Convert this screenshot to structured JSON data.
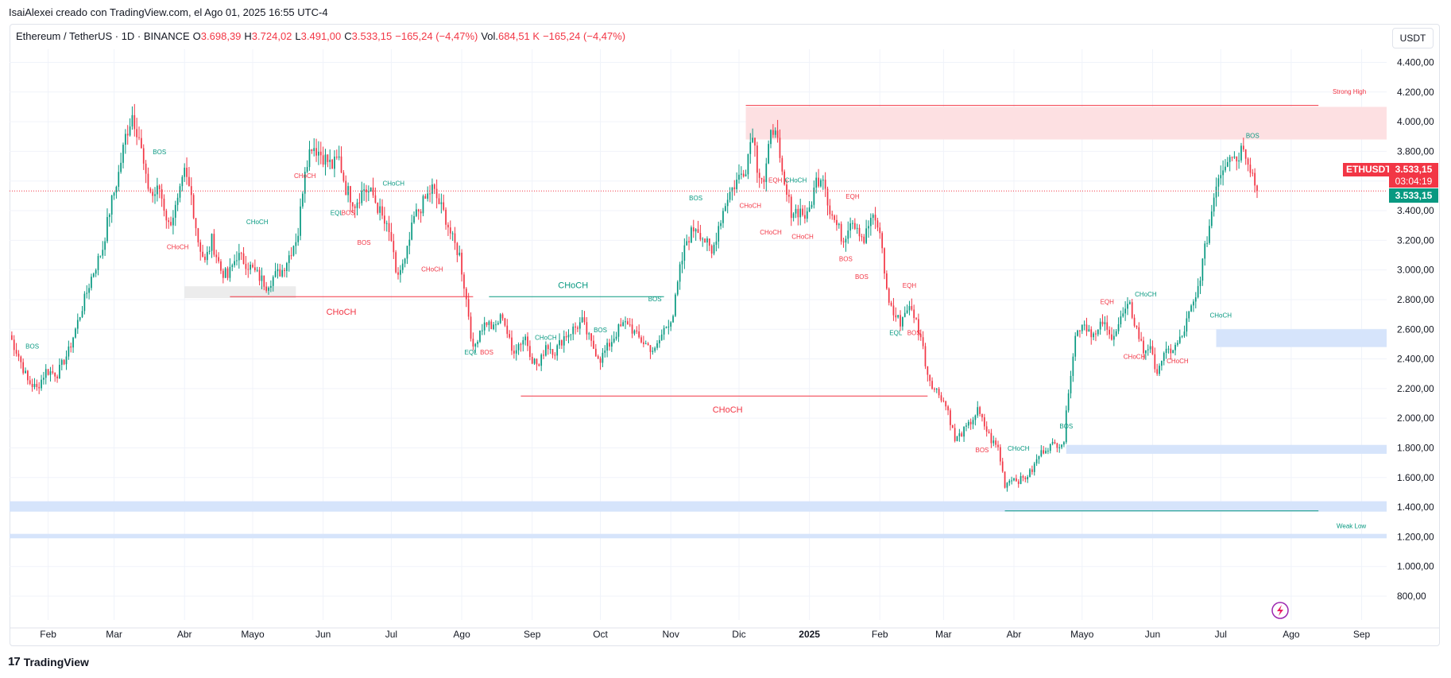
{
  "header": {
    "author_line": "IsaiAlexei creado con TradingView.com, el Ago 01, 2025 16:55 UTC-4"
  },
  "legend": {
    "symbol": "Ethereum / TetherUS · 1D · BINANCE",
    "o_label": "O",
    "o_value": "3.698,39",
    "h_label": "H",
    "h_value": "3.724,02",
    "l_label": "L",
    "l_value": "3.491,00",
    "c_label": "C",
    "c_value": "3.533,15",
    "change": "−165,24 (−4,47%)",
    "vol_label": "Vol.",
    "vol_value": "684,51 K",
    "vol_change": "−165,24 (−4,47%)"
  },
  "currency": "USDT",
  "price_tags": {
    "symbol": "ETHUSDT",
    "last": "3.533,15",
    "countdown": "03:04:19",
    "last_green": "3.533,15"
  },
  "footer": {
    "brand": "TradingView"
  },
  "colors": {
    "up": "#089981",
    "down": "#f23645",
    "supply_zone": "#fde0e2",
    "demand_zone": "#d6e4fb",
    "grey_zone": "#ececec",
    "grid": "#f0f3fa"
  },
  "chart_data": {
    "type": "candlestick",
    "ylim": [
      700,
      4500
    ],
    "y_ticks": [
      800,
      1000,
      1200,
      1400,
      1600,
      1800,
      2000,
      2200,
      2400,
      2600,
      2800,
      3000,
      3200,
      3400,
      3600,
      3800,
      4000,
      4200,
      4400
    ],
    "y_tick_labels": [
      "800,00",
      "1.000,00",
      "1.200,00",
      "1.400,00",
      "1.600,00",
      "1.800,00",
      "2.000,00",
      "2.200,00",
      "2.400,00",
      "2.600,00",
      "2.800,00",
      "3.000,00",
      "3.200,00",
      "3.400,00",
      "3.600,00",
      "3.800,00",
      "4.000,00",
      "4.200,00",
      "4.400,00"
    ],
    "x_ticks": [
      {
        "label": "Feb",
        "day": 31
      },
      {
        "label": "Mar",
        "day": 60
      },
      {
        "label": "Abr",
        "day": 91
      },
      {
        "label": "Mayo",
        "day": 121
      },
      {
        "label": "Jun",
        "day": 152
      },
      {
        "label": "Jul",
        "day": 182
      },
      {
        "label": "Ago",
        "day": 213
      },
      {
        "label": "Sep",
        "day": 244
      },
      {
        "label": "Oct",
        "day": 274
      },
      {
        "label": "Nov",
        "day": 305
      },
      {
        "label": "Dic",
        "day": 335
      },
      {
        "label": "2025",
        "day": 366,
        "bold": true
      },
      {
        "label": "Feb",
        "day": 397
      },
      {
        "label": "Mar",
        "day": 425
      },
      {
        "label": "Abr",
        "day": 456
      },
      {
        "label": "Mayo",
        "day": 486
      },
      {
        "label": "Jun",
        "day": 517
      },
      {
        "label": "Jul",
        "day": 547
      },
      {
        "label": "Ago",
        "day": 578
      },
      {
        "label": "Sep",
        "day": 609
      }
    ],
    "xlim_days": [
      14,
      620
    ],
    "last_price": 3533.15,
    "path": [
      [
        14,
        2560
      ],
      [
        18,
        2420
      ],
      [
        22,
        2250
      ],
      [
        26,
        2200
      ],
      [
        30,
        2320
      ],
      [
        35,
        2300
      ],
      [
        40,
        2450
      ],
      [
        45,
        2700
      ],
      [
        50,
        2950
      ],
      [
        55,
        3150
      ],
      [
        58,
        3400
      ],
      [
        62,
        3650
      ],
      [
        65,
        3900
      ],
      [
        68,
        4050
      ],
      [
        71,
        3900
      ],
      [
        74,
        3600
      ],
      [
        77,
        3500
      ],
      [
        80,
        3550
      ],
      [
        84,
        3300
      ],
      [
        88,
        3450
      ],
      [
        91,
        3650
      ],
      [
        94,
        3500
      ],
      [
        97,
        3200
      ],
      [
        100,
        3050
      ],
      [
        103,
        3200
      ],
      [
        107,
        3000
      ],
      [
        110,
        2950
      ],
      [
        114,
        3100
      ],
      [
        118,
        3050
      ],
      [
        121,
        3000
      ],
      [
        124,
        2950
      ],
      [
        127,
        2900
      ],
      [
        130,
        2950
      ],
      [
        134,
        3000
      ],
      [
        137,
        3100
      ],
      [
        141,
        3250
      ],
      [
        144,
        3700
      ],
      [
        147,
        3850
      ],
      [
        150,
        3800
      ],
      [
        153,
        3750
      ],
      [
        156,
        3700
      ],
      [
        159,
        3750
      ],
      [
        162,
        3550
      ],
      [
        166,
        3450
      ],
      [
        170,
        3550
      ],
      [
        174,
        3500
      ],
      [
        178,
        3350
      ],
      [
        182,
        3200
      ],
      [
        184,
        2950
      ],
      [
        188,
        3050
      ],
      [
        192,
        3350
      ],
      [
        196,
        3450
      ],
      [
        200,
        3550
      ],
      [
        203,
        3450
      ],
      [
        206,
        3350
      ],
      [
        209,
        3200
      ],
      [
        212,
        3100
      ],
      [
        214,
        2900
      ],
      [
        216,
        2700
      ],
      [
        218,
        2450
      ],
      [
        221,
        2600
      ],
      [
        224,
        2650
      ],
      [
        227,
        2600
      ],
      [
        231,
        2700
      ],
      [
        235,
        2450
      ],
      [
        238,
        2500
      ],
      [
        241,
        2550
      ],
      [
        244,
        2400
      ],
      [
        247,
        2350
      ],
      [
        250,
        2500
      ],
      [
        254,
        2450
      ],
      [
        258,
        2550
      ],
      [
        262,
        2600
      ],
      [
        266,
        2650
      ],
      [
        270,
        2500
      ],
      [
        274,
        2400
      ],
      [
        278,
        2500
      ],
      [
        282,
        2600
      ],
      [
        286,
        2650
      ],
      [
        290,
        2550
      ],
      [
        294,
        2500
      ],
      [
        298,
        2450
      ],
      [
        302,
        2600
      ],
      [
        306,
        2700
      ],
      [
        309,
        3000
      ],
      [
        312,
        3200
      ],
      [
        316,
        3300
      ],
      [
        320,
        3200
      ],
      [
        323,
        3100
      ],
      [
        326,
        3300
      ],
      [
        330,
        3500
      ],
      [
        334,
        3600
      ],
      [
        338,
        3700
      ],
      [
        341,
        3950
      ],
      [
        343,
        3700
      ],
      [
        346,
        3600
      ],
      [
        349,
        3900
      ],
      [
        351,
        4000
      ],
      [
        353,
        3700
      ],
      [
        355,
        3550
      ],
      [
        358,
        3400
      ],
      [
        362,
        3400
      ],
      [
        365,
        3350
      ],
      [
        369,
        3600
      ],
      [
        372,
        3650
      ],
      [
        375,
        3400
      ],
      [
        378,
        3300
      ],
      [
        381,
        3200
      ],
      [
        384,
        3350
      ],
      [
        387,
        3300
      ],
      [
        390,
        3200
      ],
      [
        393,
        3350
      ],
      [
        396,
        3300
      ],
      [
        398,
        3150
      ],
      [
        400,
        2850
      ],
      [
        403,
        2700
      ],
      [
        406,
        2650
      ],
      [
        409,
        2750
      ],
      [
        412,
        2700
      ],
      [
        415,
        2550
      ],
      [
        418,
        2300
      ],
      [
        421,
        2200
      ],
      [
        424,
        2150
      ],
      [
        427,
        2050
      ],
      [
        430,
        1850
      ],
      [
        433,
        1900
      ],
      [
        436,
        1950
      ],
      [
        440,
        2050
      ],
      [
        443,
        1950
      ],
      [
        446,
        1850
      ],
      [
        449,
        1800
      ],
      [
        452,
        1550
      ],
      [
        455,
        1600
      ],
      [
        458,
        1580
      ],
      [
        461,
        1600
      ],
      [
        464,
        1650
      ],
      [
        467,
        1750
      ],
      [
        470,
        1800
      ],
      [
        473,
        1820
      ],
      [
        476,
        1830
      ],
      [
        478,
        1850
      ],
      [
        480,
        2200
      ],
      [
        483,
        2550
      ],
      [
        486,
        2650
      ],
      [
        489,
        2600
      ],
      [
        492,
        2550
      ],
      [
        495,
        2650
      ],
      [
        498,
        2550
      ],
      [
        501,
        2600
      ],
      [
        504,
        2700
      ],
      [
        507,
        2750
      ],
      [
        510,
        2600
      ],
      [
        513,
        2450
      ],
      [
        516,
        2500
      ],
      [
        518,
        2300
      ],
      [
        521,
        2400
      ],
      [
        524,
        2450
      ],
      [
        527,
        2480
      ],
      [
        530,
        2550
      ],
      [
        533,
        2700
      ],
      [
        536,
        2800
      ],
      [
        539,
        3050
      ],
      [
        542,
        3300
      ],
      [
        545,
        3600
      ],
      [
        548,
        3700
      ],
      [
        551,
        3800
      ],
      [
        554,
        3750
      ],
      [
        557,
        3850
      ],
      [
        560,
        3700
      ],
      [
        563,
        3533
      ]
    ],
    "zones": [
      {
        "kind": "supply",
        "y0": 3880,
        "y1": 4100,
        "d0": 338,
        "d1": 620,
        "label": "Strong High",
        "label_day": 590,
        "label_y": 4210
      },
      {
        "kind": "demand",
        "y0": 2480,
        "y1": 2600,
        "d0": 545,
        "d1": 620
      },
      {
        "kind": "demand",
        "y0": 1760,
        "y1": 1820,
        "d0": 479,
        "d1": 620
      },
      {
        "kind": "demand",
        "y0": 1370,
        "y1": 1440,
        "d0": 14,
        "d1": 620
      },
      {
        "kind": "demand",
        "y0": 1190,
        "y1": 1220,
        "d0": 14,
        "d1": 620
      },
      {
        "kind": "grey",
        "y0": 2810,
        "y1": 2890,
        "d0": 91,
        "d1": 140
      }
    ],
    "lines": [
      {
        "d0": 338,
        "d1": 590,
        "y": 4110,
        "color": "down"
      },
      {
        "d0": 452,
        "d1": 590,
        "y": 1375,
        "color": "up",
        "label": "Weak Low",
        "label_day": 590,
        "label_y": 1280
      },
      {
        "d0": 111,
        "d1": 218,
        "y": 2820,
        "color": "down",
        "label": "CHoCH",
        "label_day": 160,
        "label_y": 2720
      },
      {
        "d0": 225,
        "d1": 302,
        "y": 2820,
        "color": "up",
        "label": "CHoCH",
        "label_day": 262,
        "label_y": 2900
      },
      {
        "d0": 239,
        "d1": 418,
        "y": 2150,
        "color": "down",
        "label": "CHoCH",
        "label_day": 330,
        "label_y": 2060
      }
    ],
    "tags": [
      {
        "t": "BOS",
        "d": 24,
        "y": 2470,
        "c": "up"
      },
      {
        "t": "BOS",
        "d": 80,
        "y": 3780,
        "c": "up"
      },
      {
        "t": "CHoCH",
        "d": 88,
        "y": 3140,
        "c": "down"
      },
      {
        "t": "CHoCH",
        "d": 123,
        "y": 3310,
        "c": "up"
      },
      {
        "t": "CHoCH",
        "d": 144,
        "y": 3620,
        "c": "down"
      },
      {
        "t": "EQL",
        "d": 158,
        "y": 3370,
        "c": "up"
      },
      {
        "t": "BOS",
        "d": 163,
        "y": 3370,
        "c": "down"
      },
      {
        "t": "BOS",
        "d": 170,
        "y": 3170,
        "c": "down"
      },
      {
        "t": "CHoCH",
        "d": 183,
        "y": 3570,
        "c": "up"
      },
      {
        "t": "CHoCH",
        "d": 200,
        "y": 2990,
        "c": "down"
      },
      {
        "t": "EQL",
        "d": 217,
        "y": 2430,
        "c": "up"
      },
      {
        "t": "BOS",
        "d": 224,
        "y": 2430,
        "c": "down"
      },
      {
        "t": "CHoCH",
        "d": 250,
        "y": 2530,
        "c": "up"
      },
      {
        "t": "BOS",
        "d": 274,
        "y": 2580,
        "c": "up"
      },
      {
        "t": "BOS",
        "d": 298,
        "y": 2790,
        "c": "up"
      },
      {
        "t": "BOS",
        "d": 316,
        "y": 3470,
        "c": "up"
      },
      {
        "t": "EQH",
        "d": 351,
        "y": 3590,
        "c": "down"
      },
      {
        "t": "CHoCH",
        "d": 360,
        "y": 3590,
        "c": "up"
      },
      {
        "t": "CHoCH",
        "d": 340,
        "y": 3420,
        "c": "down"
      },
      {
        "t": "CHoCH",
        "d": 349,
        "y": 3240,
        "c": "down"
      },
      {
        "t": "CHoCH",
        "d": 363,
        "y": 3210,
        "c": "down"
      },
      {
        "t": "EQH",
        "d": 385,
        "y": 3480,
        "c": "down"
      },
      {
        "t": "BOS",
        "d": 382,
        "y": 3060,
        "c": "down"
      },
      {
        "t": "BOS",
        "d": 389,
        "y": 2940,
        "c": "down"
      },
      {
        "t": "EQH",
        "d": 410,
        "y": 2880,
        "c": "down"
      },
      {
        "t": "EQL",
        "d": 404,
        "y": 2560,
        "c": "up"
      },
      {
        "t": "BOS",
        "d": 412,
        "y": 2560,
        "c": "down"
      },
      {
        "t": "BOS",
        "d": 442,
        "y": 1770,
        "c": "down"
      },
      {
        "t": "CHoCH",
        "d": 458,
        "y": 1780,
        "c": "up"
      },
      {
        "t": "BOS",
        "d": 479,
        "y": 1930,
        "c": "up"
      },
      {
        "t": "EQH",
        "d": 497,
        "y": 2770,
        "c": "down"
      },
      {
        "t": "CHoCH",
        "d": 514,
        "y": 2820,
        "c": "up"
      },
      {
        "t": "CHoCH",
        "d": 509,
        "y": 2400,
        "c": "down"
      },
      {
        "t": "CHoCH",
        "d": 528,
        "y": 2370,
        "c": "down"
      },
      {
        "t": "CHoCH",
        "d": 547,
        "y": 2680,
        "c": "up"
      },
      {
        "t": "BOS",
        "d": 561,
        "y": 3890,
        "c": "up"
      }
    ]
  }
}
